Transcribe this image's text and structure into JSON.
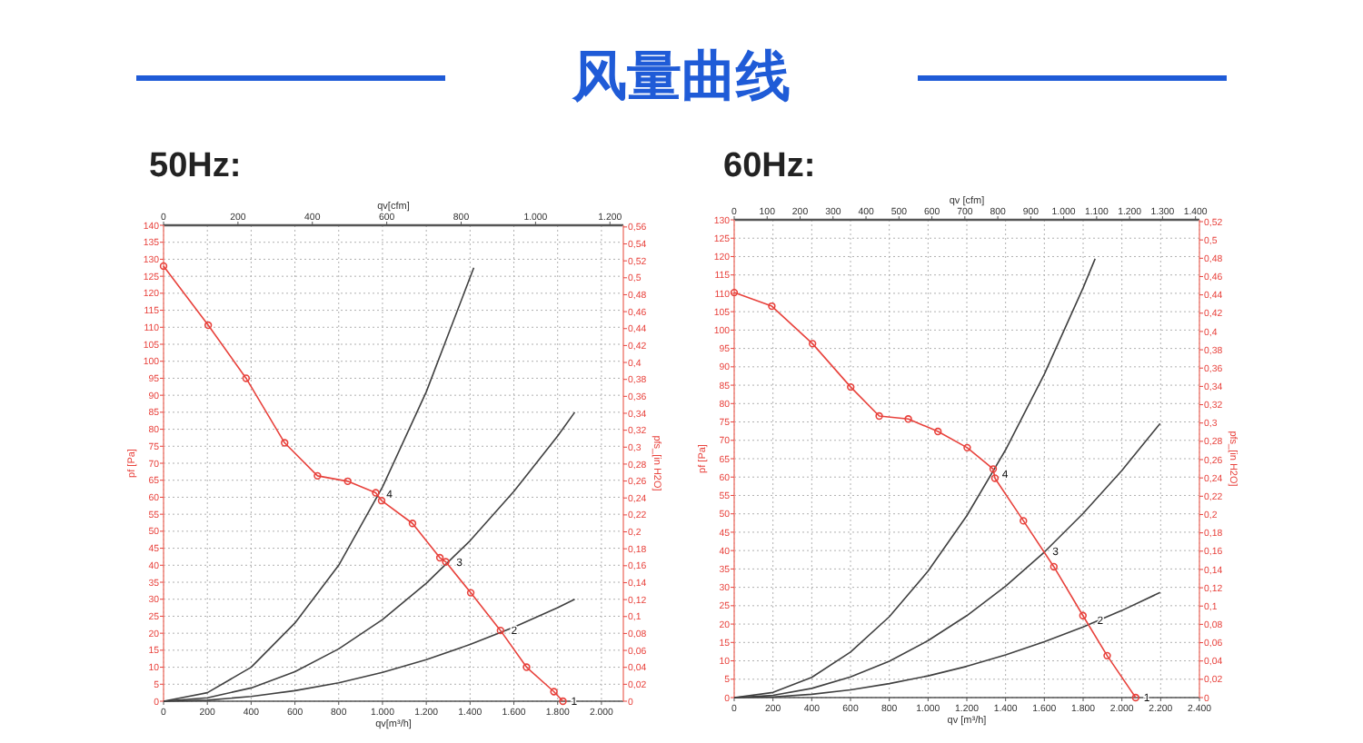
{
  "chart_data": [
    {
      "type": "line",
      "title": "风量曲线",
      "subtitle": "50Hz:",
      "xlabel": "qv[m³/h]",
      "x2label": "qv[cfm]",
      "ylabel": "pf [Pa]",
      "y2label": "pfs_[in H2O]",
      "xlim": [
        0,
        2100
      ],
      "xticks": [
        0,
        200,
        400,
        600,
        800,
        {
          "value": 1000,
          "label": "1.000"
        },
        {
          "value": 1200,
          "label": "1.200"
        },
        {
          "value": 1400,
          "label": "1.400"
        },
        {
          "value": 1600,
          "label": "1.600"
        },
        {
          "value": 1800,
          "label": "1.800"
        },
        {
          "value": 2000,
          "label": "2.000"
        }
      ],
      "x2lim": [
        0,
        1236
      ],
      "x2ticks": [
        0,
        200,
        400,
        600,
        800,
        {
          "value": 1000,
          "label": "1.000"
        },
        {
          "value": 1200,
          "label": "1.200"
        }
      ],
      "ylim": [
        0,
        140
      ],
      "yticks": [
        0,
        5,
        10,
        15,
        20,
        25,
        30,
        35,
        40,
        45,
        50,
        55,
        60,
        65,
        70,
        75,
        80,
        85,
        90,
        95,
        100,
        105,
        110,
        115,
        120,
        125,
        130,
        135,
        140
      ],
      "y2lim": [
        0,
        0.562
      ],
      "y2ticks": [
        {
          "value": 0,
          "label": "0"
        },
        {
          "value": 0.02,
          "label": "0,02"
        },
        {
          "value": 0.04,
          "label": "0,04"
        },
        {
          "value": 0.06,
          "label": "0,06"
        },
        {
          "value": 0.08,
          "label": "0,08"
        },
        {
          "value": 0.1,
          "label": "0,1"
        },
        {
          "value": 0.12,
          "label": "0,12"
        },
        {
          "value": 0.14,
          "label": "0,14"
        },
        {
          "value": 0.16,
          "label": "0,16"
        },
        {
          "value": 0.18,
          "label": "0,18"
        },
        {
          "value": 0.2,
          "label": "0,2"
        },
        {
          "value": 0.22,
          "label": "0,22"
        },
        {
          "value": 0.24,
          "label": "0,24"
        },
        {
          "value": 0.26,
          "label": "0,26"
        },
        {
          "value": 0.28,
          "label": "0,28"
        },
        {
          "value": 0.3,
          "label": "0,3"
        },
        {
          "value": 0.32,
          "label": "0,32"
        },
        {
          "value": 0.34,
          "label": "0,34"
        },
        {
          "value": 0.36,
          "label": "0,36"
        },
        {
          "value": 0.38,
          "label": "0,38"
        },
        {
          "value": 0.4,
          "label": "0,4"
        },
        {
          "value": 0.42,
          "label": "0,42"
        },
        {
          "value": 0.44,
          "label": "0,44"
        },
        {
          "value": 0.46,
          "label": "0,46"
        },
        {
          "value": 0.48,
          "label": "0,48"
        },
        {
          "value": 0.5,
          "label": "0,5"
        },
        {
          "value": 0.52,
          "label": "0,52"
        },
        {
          "value": 0.54,
          "label": "0,54"
        },
        {
          "value": 0.56,
          "label": "0,56"
        }
      ],
      "grid": true,
      "series": [
        {
          "color": "#e8423c",
          "marker": "circle",
          "x": [
            0,
            204,
            377,
            553,
            703,
            841,
            969,
            996,
            1137,
            1262,
            1289,
            1403,
            1539,
            1658,
            1783,
            1824
          ],
          "values": [
            128,
            110.6,
            95,
            76,
            66.3,
            64.7,
            61.3,
            59,
            52.3,
            42.2,
            41,
            31.9,
            20.8,
            10,
            2.8,
            0
          ]
        },
        {
          "color": "#404040",
          "marker": "none",
          "x": [
            0,
            200,
            400,
            600,
            800,
            1000,
            1200,
            1417
          ],
          "values": [
            0,
            2.5,
            10,
            23,
            40,
            63,
            91,
            127.5
          ]
        },
        {
          "color": "#404040",
          "marker": "none",
          "x": [
            0,
            200,
            400,
            600,
            800,
            1000,
            1200,
            1400,
            1600,
            1800,
            1878
          ],
          "values": [
            0,
            1,
            3.9,
            8.7,
            15.4,
            24,
            34.7,
            47.2,
            61.7,
            78,
            85
          ]
        },
        {
          "color": "#404040",
          "marker": "none",
          "x": [
            0,
            200,
            400,
            600,
            800,
            1000,
            1200,
            1400,
            1600,
            1800,
            1878
          ],
          "values": [
            0,
            0.3,
            1.4,
            3.1,
            5.4,
            8.5,
            12.2,
            16.7,
            21.8,
            27.5,
            30
          ]
        }
      ],
      "annotations": [
        {
          "text": "4",
          "x": 980,
          "y": 61
        },
        {
          "text": "3",
          "x": 1300,
          "y": 41
        },
        {
          "text": "2",
          "x": 1550,
          "y": 21
        },
        {
          "text": "1",
          "x": 1824,
          "y": 0
        }
      ]
    },
    {
      "type": "line",
      "subtitle": "60Hz:",
      "xlabel": "qv [m³/h]",
      "x2label": "qv [cfm]",
      "ylabel": "pf [Pa]",
      "y2label": "pfs_[in H2O]",
      "xlim": [
        0,
        2400
      ],
      "xticks": [
        0,
        200,
        400,
        600,
        800,
        {
          "value": 1000,
          "label": "1.000"
        },
        {
          "value": 1200,
          "label": "1.200"
        },
        {
          "value": 1400,
          "label": "1.400"
        },
        {
          "value": 1600,
          "label": "1.600"
        },
        {
          "value": 1800,
          "label": "1.800"
        },
        {
          "value": 2000,
          "label": "2.000"
        },
        {
          "value": 2200,
          "label": "2.200"
        },
        {
          "value": 2400,
          "label": "2.400"
        }
      ],
      "x2lim": [
        0,
        1412
      ],
      "x2ticks": [
        0,
        100,
        200,
        300,
        400,
        500,
        600,
        700,
        800,
        900,
        {
          "value": 1000,
          "label": "1.000"
        },
        {
          "value": 1100,
          "label": "1.100"
        },
        {
          "value": 1200,
          "label": "1.200"
        },
        {
          "value": 1300,
          "label": "1.300"
        },
        {
          "value": 1400,
          "label": "1.400"
        }
      ],
      "ylim": [
        0,
        130
      ],
      "yticks": [
        0,
        5,
        10,
        15,
        20,
        25,
        30,
        35,
        40,
        45,
        50,
        55,
        60,
        65,
        70,
        75,
        80,
        85,
        90,
        95,
        100,
        105,
        110,
        115,
        120,
        125,
        130
      ],
      "y2lim": [
        0,
        0.522
      ],
      "y2ticks": [
        {
          "value": 0,
          "label": "0"
        },
        {
          "value": 0.02,
          "label": "0,02"
        },
        {
          "value": 0.04,
          "label": "0,04"
        },
        {
          "value": 0.06,
          "label": "0,06"
        },
        {
          "value": 0.08,
          "label": "0,08"
        },
        {
          "value": 0.1,
          "label": "0,1"
        },
        {
          "value": 0.12,
          "label": "0,12"
        },
        {
          "value": 0.14,
          "label": "0,14"
        },
        {
          "value": 0.16,
          "label": "0,16"
        },
        {
          "value": 0.18,
          "label": "0,18"
        },
        {
          "value": 0.2,
          "label": "0,2"
        },
        {
          "value": 0.22,
          "label": "0,22"
        },
        {
          "value": 0.24,
          "label": "0,24"
        },
        {
          "value": 0.26,
          "label": "0,26"
        },
        {
          "value": 0.28,
          "label": "0,28"
        },
        {
          "value": 0.3,
          "label": "0,3"
        },
        {
          "value": 0.32,
          "label": "0,32"
        },
        {
          "value": 0.34,
          "label": "0,34"
        },
        {
          "value": 0.36,
          "label": "0,36"
        },
        {
          "value": 0.38,
          "label": "0,38"
        },
        {
          "value": 0.4,
          "label": "0,4"
        },
        {
          "value": 0.42,
          "label": "0,42"
        },
        {
          "value": 0.44,
          "label": "0,44"
        },
        {
          "value": 0.46,
          "label": "0,46"
        },
        {
          "value": 0.48,
          "label": "0,48"
        },
        {
          "value": 0.5,
          "label": "0,5"
        },
        {
          "value": 0.52,
          "label": "0,52"
        }
      ],
      "grid": true,
      "series": [
        {
          "color": "#e8423c",
          "marker": "circle",
          "x": [
            0,
            194,
            404,
            601,
            748,
            898,
            1051,
            1202,
            1336,
            1345,
            1492,
            1649,
            1799,
            1924,
            2071
          ],
          "values": [
            110.2,
            106.5,
            96.3,
            84.5,
            76.6,
            75.8,
            72.4,
            68,
            62.2,
            59.7,
            48.1,
            35.6,
            22.3,
            11.4,
            0
          ]
        },
        {
          "color": "#404040",
          "marker": "none",
          "x": [
            0,
            200,
            400,
            600,
            800,
            1000,
            1200,
            1400,
            1600,
            1800,
            1862
          ],
          "values": [
            0,
            1.4,
            5.5,
            12.4,
            22,
            34.4,
            49.5,
            67.4,
            88,
            111.5,
            119.4
          ]
        },
        {
          "color": "#404040",
          "marker": "none",
          "x": [
            0,
            200,
            400,
            600,
            800,
            1000,
            1200,
            1400,
            1600,
            1800,
            2000,
            2197
          ],
          "values": [
            0,
            0.6,
            2.5,
            5.6,
            9.9,
            15.5,
            22.3,
            30.3,
            39.6,
            50.1,
            61.8,
            74.6
          ]
        },
        {
          "color": "#404040",
          "marker": "none",
          "x": [
            0,
            200,
            400,
            600,
            800,
            1000,
            1200,
            1400,
            1600,
            1800,
            2000,
            2197
          ],
          "values": [
            0,
            0.2,
            0.9,
            2.1,
            3.8,
            5.9,
            8.5,
            11.6,
            15.2,
            19.2,
            23.7,
            28.6
          ]
        }
      ],
      "annotations": [
        {
          "text": "4",
          "x": 1340,
          "y": 61
        },
        {
          "text": "3",
          "x": 1600,
          "y": 40
        },
        {
          "text": "2",
          "x": 1830,
          "y": 21
        },
        {
          "text": "1",
          "x": 2071,
          "y": 0
        }
      ]
    }
  ]
}
